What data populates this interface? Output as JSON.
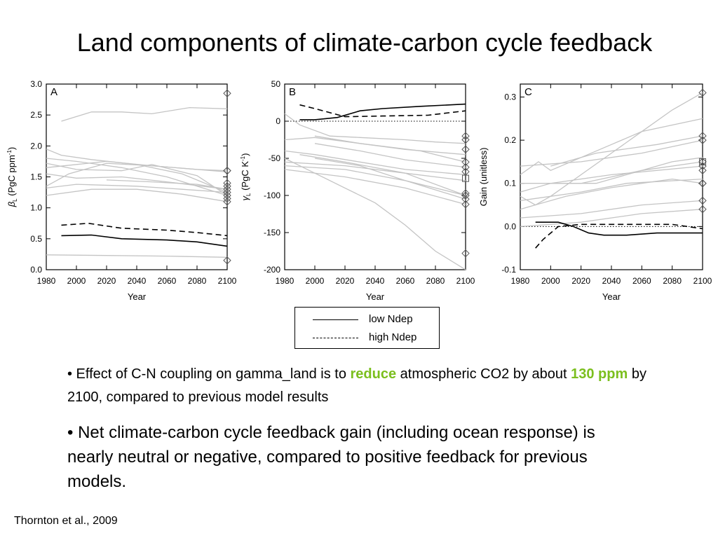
{
  "title": "Land components of climate-carbon cycle feedback",
  "chart_data": [
    {
      "type": "line",
      "panel": "A",
      "xlabel": "Year",
      "ylabel": "βL (PgC ppm⁻¹)",
      "ylabel_main": "β",
      "ylabel_sub": "L",
      "ylabel_rest": " (PgC ppm",
      "ylabel_sup": "-1",
      "ylabel_close": ")",
      "xlim": [
        1980,
        2100
      ],
      "ylim": [
        0.0,
        3.0
      ],
      "xticks": [
        "1980",
        "2000",
        "2020",
        "2040",
        "2060",
        "2080",
        "2100"
      ],
      "yticks": [
        "0.0",
        "0.5",
        "1.0",
        "1.5",
        "2.0",
        "2.5",
        "3.0"
      ],
      "series": [
        {
          "style": "solid",
          "x": [
            1990,
            2010,
            2030,
            2060,
            2080,
            2100
          ],
          "y": [
            0.55,
            0.56,
            0.5,
            0.48,
            0.45,
            0.38
          ]
        },
        {
          "style": "dashed",
          "x": [
            1990,
            2008,
            2030,
            2060,
            2080,
            2100
          ],
          "y": [
            0.72,
            0.75,
            0.67,
            0.64,
            0.6,
            0.55
          ]
        }
      ],
      "model_lines": [
        {
          "x": [
            1990,
            2010,
            2030,
            2050,
            2075,
            2100
          ],
          "y": [
            2.4,
            2.55,
            2.55,
            2.52,
            2.62,
            2.6
          ]
        },
        {
          "x": [
            1980,
            1990,
            2010,
            2040,
            2070,
            2100
          ],
          "y": [
            1.95,
            1.85,
            1.78,
            1.7,
            1.55,
            1.25
          ]
        },
        {
          "x": [
            1980,
            2000,
            2030,
            2060,
            2100
          ],
          "y": [
            1.8,
            1.75,
            1.65,
            1.5,
            1.2
          ]
        },
        {
          "x": [
            1980,
            2000,
            2020,
            2050,
            2080,
            2100
          ],
          "y": [
            1.65,
            1.7,
            1.75,
            1.68,
            1.62,
            1.6
          ]
        },
        {
          "x": [
            1980,
            1995,
            2020,
            2050,
            2100
          ],
          "y": [
            1.35,
            1.55,
            1.72,
            1.68,
            1.58
          ]
        },
        {
          "x": [
            1980,
            2000,
            2030,
            2060,
            2100
          ],
          "y": [
            1.55,
            1.48,
            1.5,
            1.42,
            1.3
          ]
        },
        {
          "x": [
            1980,
            2000,
            2030,
            2050,
            2080,
            2100
          ],
          "y": [
            1.72,
            1.62,
            1.6,
            1.7,
            1.52,
            1.2
          ]
        },
        {
          "x": [
            1980,
            2000,
            2040,
            2070,
            2100
          ],
          "y": [
            1.32,
            1.38,
            1.35,
            1.3,
            1.25
          ]
        },
        {
          "x": [
            1980,
            2010,
            2040,
            2070,
            2100
          ],
          "y": [
            1.2,
            1.3,
            1.3,
            1.22,
            1.1
          ]
        },
        {
          "x": [
            2020,
            2050,
            2080,
            2100
          ],
          "y": [
            1.45,
            1.42,
            1.38,
            1.3
          ]
        },
        {
          "x": [
            1980,
            2020,
            2060,
            2100
          ],
          "y": [
            0.24,
            0.23,
            0.22,
            0.2
          ]
        }
      ],
      "markers_2100": [
        2.85,
        1.6,
        1.6,
        1.4,
        1.35,
        1.3,
        1.25,
        1.2,
        1.15,
        1.1,
        0.15
      ]
    },
    {
      "type": "line",
      "panel": "B",
      "xlabel": "Year",
      "ylabel": "γL (PgC K⁻¹)",
      "ylabel_main": "γ",
      "ylabel_sub": "L",
      "ylabel_rest": " (PgC K",
      "ylabel_sup": "-1",
      "ylabel_close": ")",
      "xlim": [
        1980,
        2100
      ],
      "ylim": [
        -200,
        50
      ],
      "xticks": [
        "1980",
        "2000",
        "2020",
        "2040",
        "2060",
        "2080",
        "2100"
      ],
      "yticks": [
        "-200",
        "-150",
        "-100",
        "-50",
        "0",
        "50"
      ],
      "zero_line": true,
      "series": [
        {
          "style": "solid",
          "x": [
            1990,
            2000,
            2015,
            2030,
            2045,
            2070,
            2100
          ],
          "y": [
            2,
            2,
            5,
            14,
            17,
            20,
            23
          ]
        },
        {
          "style": "dashed",
          "x": [
            1990,
            2000,
            2020,
            2045,
            2075,
            2100
          ],
          "y": [
            22,
            17,
            6,
            7,
            8,
            14
          ]
        }
      ],
      "model_lines": [
        {
          "x": [
            1980,
            1990,
            2010,
            2030,
            2060,
            2080,
            2100
          ],
          "y": [
            10,
            -5,
            -20,
            -22,
            -25,
            -28,
            -30
          ]
        },
        {
          "x": [
            1980,
            2000,
            2030,
            2060,
            2100
          ],
          "y": [
            -25,
            -22,
            -30,
            -38,
            -45
          ]
        },
        {
          "x": [
            2000,
            2030,
            2070,
            2100
          ],
          "y": [
            -20,
            -30,
            -40,
            -55
          ]
        },
        {
          "x": [
            2000,
            2030,
            2060,
            2100
          ],
          "y": [
            -30,
            -40,
            -52,
            -62
          ]
        },
        {
          "x": [
            1980,
            2000,
            2030,
            2060,
            2100
          ],
          "y": [
            -40,
            -45,
            -55,
            -65,
            -72
          ]
        },
        {
          "x": [
            1990,
            2020,
            2060,
            2100
          ],
          "y": [
            -45,
            -55,
            -70,
            -80
          ]
        },
        {
          "x": [
            2000,
            2030,
            2060,
            2100
          ],
          "y": [
            -50,
            -60,
            -80,
            -100
          ]
        },
        {
          "x": [
            1980,
            2020,
            2060,
            2100
          ],
          "y": [
            -55,
            -60,
            -70,
            -100
          ]
        },
        {
          "x": [
            1980,
            2020,
            2060,
            2100
          ],
          "y": [
            -60,
            -65,
            -80,
            -105
          ]
        },
        {
          "x": [
            1980,
            1995,
            2020,
            2040,
            2060,
            2080,
            2100
          ],
          "y": [
            -50,
            -65,
            -90,
            -110,
            -140,
            -175,
            -200
          ]
        },
        {
          "x": [
            1980,
            2020,
            2060,
            2100
          ],
          "y": [
            -65,
            -75,
            -90,
            -112
          ]
        }
      ],
      "markers_2100": [
        -20,
        -25,
        -38,
        -55,
        -62,
        -68,
        -97,
        -100,
        -105,
        -112,
        -178
      ],
      "square_marker_2100": -77
    },
    {
      "type": "line",
      "panel": "C",
      "xlabel": "Year",
      "ylabel": "Gain (unitless)",
      "xlim": [
        1980,
        2100
      ],
      "ylim": [
        -0.1,
        0.33
      ],
      "xticks": [
        "1980",
        "2000",
        "2020",
        "2040",
        "2060",
        "2080",
        "2100"
      ],
      "yticks": [
        "-0.1",
        "0.0",
        "0.1",
        "0.2",
        "0.3"
      ],
      "zero_line": true,
      "series": [
        {
          "style": "solid",
          "x": [
            1990,
            2005,
            2015,
            2025,
            2035,
            2050,
            2070,
            2100
          ],
          "y": [
            0.01,
            0.01,
            0.0,
            -0.015,
            -0.02,
            -0.02,
            -0.015,
            -0.015
          ]
        },
        {
          "style": "dashed",
          "x": [
            1990,
            1995,
            2005,
            2020,
            2040,
            2060,
            2080,
            2100
          ],
          "y": [
            -0.05,
            -0.03,
            0.0,
            0.005,
            0.005,
            0.005,
            0.005,
            -0.005
          ]
        }
      ],
      "model_lines": [
        {
          "x": [
            1980,
            1992,
            2000,
            2020,
            2040,
            2060,
            2100
          ],
          "y": [
            0.12,
            0.15,
            0.13,
            0.16,
            0.19,
            0.22,
            0.25
          ]
        },
        {
          "x": [
            2000,
            2030,
            2070,
            2100
          ],
          "y": [
            0.14,
            0.17,
            0.19,
            0.21
          ]
        },
        {
          "x": [
            2000,
            2030,
            2060,
            2080,
            2100
          ],
          "y": [
            0.1,
            0.1,
            0.13,
            0.15,
            0.16
          ]
        },
        {
          "x": [
            1980,
            2020,
            2060,
            2100
          ],
          "y": [
            0.1,
            0.1,
            0.13,
            0.15
          ]
        },
        {
          "x": [
            1980,
            2000,
            2040,
            2100
          ],
          "y": [
            0.08,
            0.1,
            0.12,
            0.14
          ]
        },
        {
          "x": [
            1980,
            2020,
            2050,
            2100
          ],
          "y": [
            0.06,
            0.08,
            0.1,
            0.11
          ]
        },
        {
          "x": [
            1980,
            2010,
            2040,
            2060,
            2080,
            2100
          ],
          "y": [
            0.04,
            0.07,
            0.09,
            0.1,
            0.11,
            0.1
          ]
        },
        {
          "x": [
            1980,
            2020,
            2060,
            2100
          ],
          "y": [
            0.02,
            0.03,
            0.05,
            0.06
          ]
        },
        {
          "x": [
            1980,
            2020,
            2060,
            2100
          ],
          "y": [
            0.0,
            0.01,
            0.03,
            0.04
          ]
        },
        {
          "x": [
            1980,
            1990,
            2000,
            2020,
            2040,
            2060,
            2080,
            2100
          ],
          "y": [
            0.07,
            0.05,
            0.07,
            0.12,
            0.17,
            0.22,
            0.27,
            0.31
          ]
        },
        {
          "x": [
            1980,
            2020,
            2060,
            2100
          ],
          "y": [
            0.14,
            0.15,
            0.17,
            0.2
          ]
        }
      ],
      "markers_2100": [
        0.31,
        0.21,
        0.2,
        0.15,
        0.15,
        0.14,
        0.13,
        0.1,
        0.1,
        0.06,
        0.04
      ],
      "square_marker_2100": 0.15
    }
  ],
  "legend": {
    "items": [
      {
        "style": "solid",
        "label": "low Ndep"
      },
      {
        "style": "dashed",
        "label": "high Ndep"
      }
    ]
  },
  "bullets": {
    "b1": {
      "part1": "• Effect of C-N coupling on gamma_land is to ",
      "hl1": "reduce",
      "part2": " atmospheric CO2 by about ",
      "hl2": "130 ppm",
      "part3": " by 2100, compared to previous model results"
    },
    "b2": "• Net climate-carbon cycle feedback gain (including ocean response) is nearly neutral or negative, compared to positive feedback for previous models."
  },
  "citation": "Thornton et al., 2009",
  "colors": {
    "highlight": "#7bbf1e",
    "model_lines": "#c4c4c4",
    "axes": "#000000"
  }
}
